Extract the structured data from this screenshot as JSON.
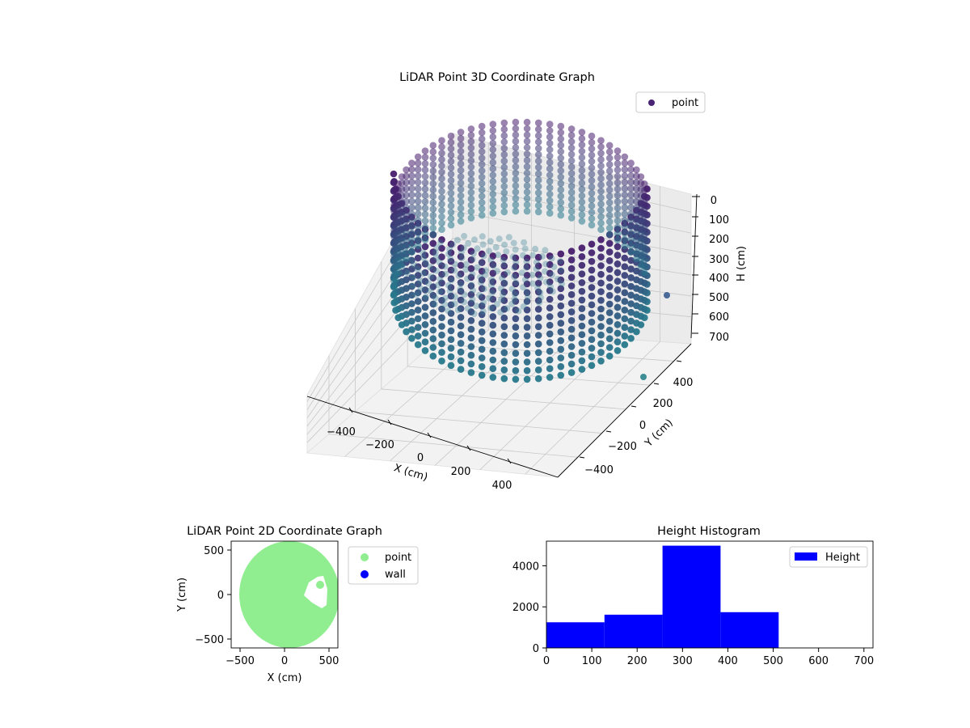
{
  "chart_data": [
    {
      "type": "scatter",
      "projection": "3d",
      "title": "LiDAR Point 3D Coordinate Graph",
      "xlabel": "X (cm)",
      "ylabel": "Y (cm)",
      "zlabel": "H (cm)",
      "xlim": [
        -550,
        550
      ],
      "ylim": [
        -550,
        550
      ],
      "zlim": [
        700,
        0
      ],
      "z_inverted": true,
      "x_ticks": [
        "−400",
        "−200",
        "0",
        "200",
        "400"
      ],
      "y_ticks": [
        "−400",
        "−200",
        "0",
        "200",
        "400"
      ],
      "z_ticks": [
        "0",
        "100",
        "200",
        "300",
        "400",
        "500",
        "600",
        "700"
      ],
      "series": [
        {
          "name": "point",
          "shape": "cylindrical wall of points, radius ~500 cm, heights 0–500 cm, with an opening toward +X",
          "colormap": "viridis (dark purple at top, teal at bottom)"
        }
      ],
      "legend": "top-right",
      "grid": true
    },
    {
      "type": "scatter",
      "title": "LiDAR Point 2D Coordinate Graph",
      "xlabel": "X (cm)",
      "ylabel": "Y (cm)",
      "xlim": [
        -600,
        600
      ],
      "ylim": [
        -600,
        600
      ],
      "x_ticks": [
        "−500",
        "0",
        "500"
      ],
      "y_ticks": [
        "500",
        "0",
        "−500"
      ],
      "series": [
        {
          "name": "point",
          "color": "#90ee90",
          "shape": "filled disc, radius ~500 cm, centered near (150, 0), with a notch near x 200–500, y −100–150"
        },
        {
          "name": "wall",
          "color": "#0000ff",
          "points": []
        }
      ],
      "legend": "outside right"
    },
    {
      "type": "bar",
      "subtype": "histogram",
      "title": "Height Histogram",
      "xlim": [
        0,
        720
      ],
      "ylim": [
        0,
        5200
      ],
      "x_ticks": [
        "0",
        "100",
        "200",
        "300",
        "400",
        "500",
        "600",
        "700"
      ],
      "y_ticks": [
        "0",
        "2000",
        "4000"
      ],
      "bin_edges": [
        0,
        128,
        256,
        384,
        512,
        640
      ],
      "values": [
        1250,
        1620,
        4980,
        1740,
        0
      ],
      "series": [
        {
          "name": "Height",
          "color": "#0000ff"
        }
      ],
      "legend": "top-right"
    }
  ]
}
